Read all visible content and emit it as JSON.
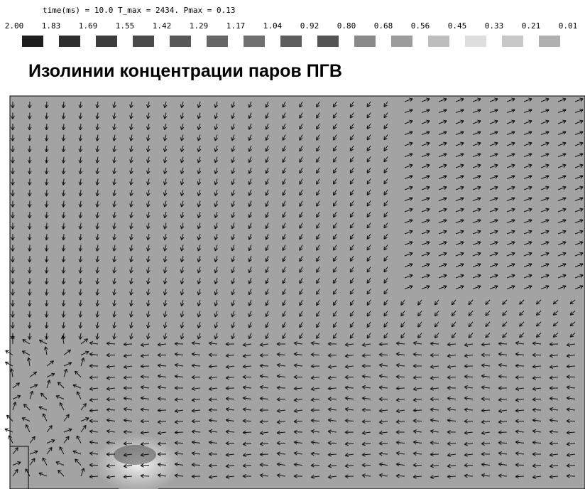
{
  "header": {
    "status": "time(ms) = 10.0 T_max = 2434. Pmax = 0.13"
  },
  "legend": {
    "levels": [
      "2.00",
      "1.83",
      "1.69",
      "1.55",
      "1.42",
      "1.29",
      "1.17",
      "1.04",
      "0.92",
      "0.80",
      "0.68",
      "0.56",
      "0.45",
      "0.33",
      "0.21",
      "0.01"
    ],
    "colors": [
      "#1e1e1e",
      "#2e2e2e",
      "#3c3c3c",
      "#4a4a4a",
      "#585858",
      "#666666",
      "#707070",
      "#5e5e5e",
      "#545454",
      "#8a8a8a",
      "#9c9c9c",
      "#bdbdbd",
      "#dedede",
      "#c8c8c8",
      "#b0b0b0"
    ]
  },
  "title": "Изолинии концентрации паров ПГВ"
}
